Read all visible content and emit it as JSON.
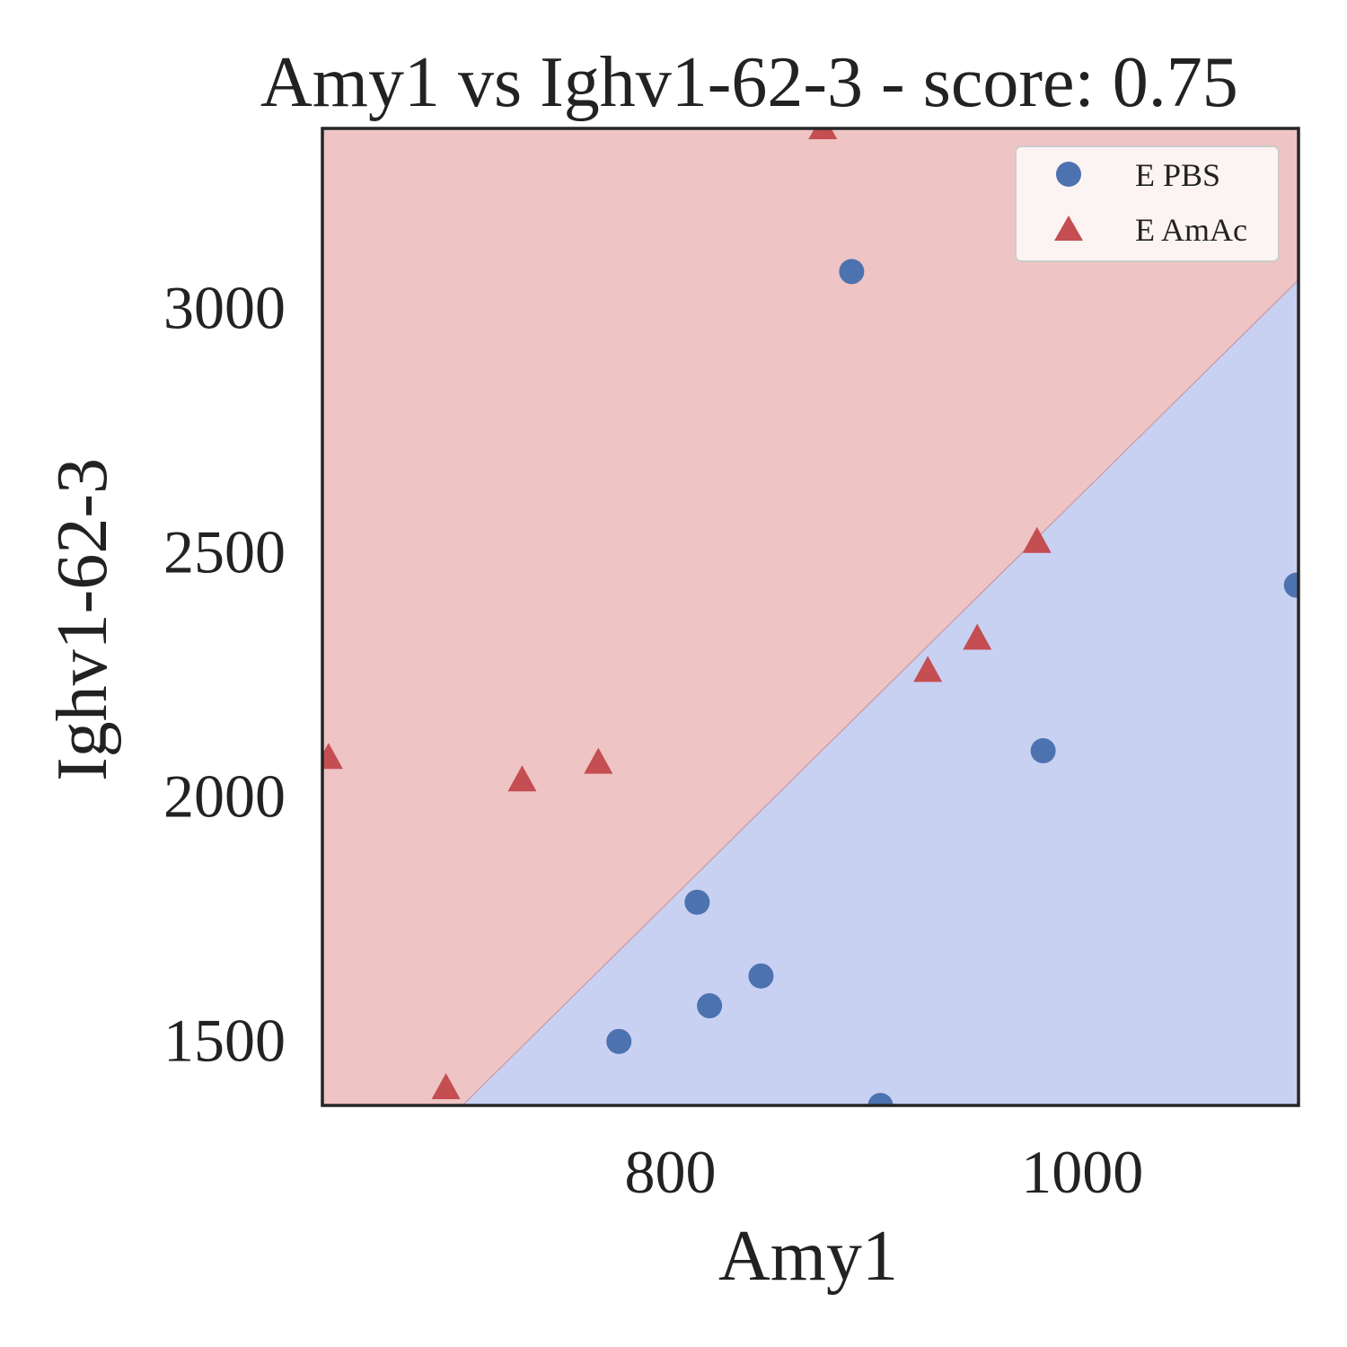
{
  "chart_data": {
    "type": "scatter",
    "title": "Amy1 vs Ighv1-62-3 - score: 0.75",
    "xlabel": "Amy1",
    "ylabel": "Ighv1-62-3",
    "xlim": [
      631,
      1105
    ],
    "ylim": [
      1365,
      3365
    ],
    "xticks": [
      800,
      1000
    ],
    "yticks": [
      1500,
      2000,
      2500,
      3000
    ],
    "grid": false,
    "legend_position": "top-right",
    "decision_boundary": {
      "points": [
        [
          699,
          1365
        ],
        [
          1105,
          3055
        ]
      ],
      "region_above": "E AmAc",
      "region_below": "E PBS"
    },
    "series": [
      {
        "name": "E PBS",
        "marker": "circle",
        "color": "#4c72b0",
        "points": [
          [
            888,
            3072
          ],
          [
            1104,
            2430
          ],
          [
            981,
            2091
          ],
          [
            813,
            1781
          ],
          [
            844,
            1630
          ],
          [
            819,
            1569
          ],
          [
            775,
            1496
          ],
          [
            902,
            1365
          ]
        ]
      },
      {
        "name": "E AmAc",
        "marker": "triangle",
        "color": "#c44e52",
        "points": [
          [
            874,
            3365
          ],
          [
            978,
            2518
          ],
          [
            949,
            2320
          ],
          [
            925,
            2254
          ],
          [
            634,
            2076
          ],
          [
            765,
            2066
          ],
          [
            728,
            2030
          ],
          [
            691,
            1400
          ]
        ]
      }
    ],
    "region_colors": {
      "above": "#eec4c4",
      "below": "#c9d1f2"
    }
  }
}
